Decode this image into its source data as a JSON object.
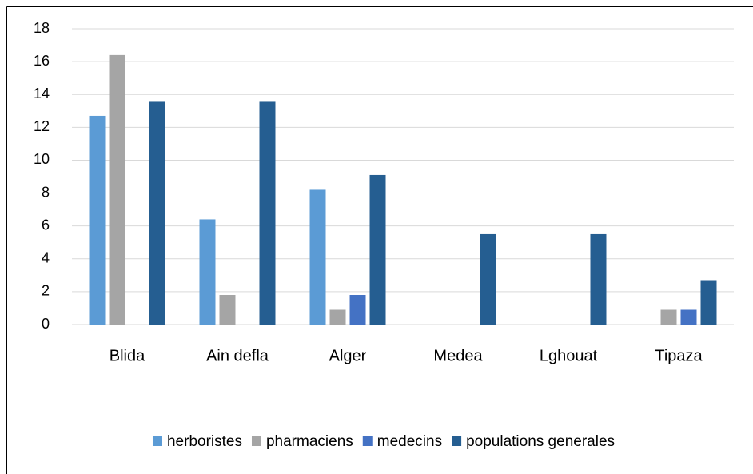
{
  "chart_data": {
    "type": "bar",
    "categories": [
      "Blida",
      "Ain defla",
      "Alger",
      "Medea",
      "Lghouat",
      "Tipaza"
    ],
    "series": [
      {
        "name": "herboristes",
        "color": "#5b9bd5",
        "values": [
          12.7,
          6.4,
          8.2,
          0,
          0,
          0
        ]
      },
      {
        "name": "pharmaciens",
        "color": "#a5a5a5",
        "values": [
          16.4,
          1.8,
          0.9,
          0,
          0,
          0.9
        ]
      },
      {
        "name": "medecins",
        "color": "#4472c4",
        "values": [
          0,
          0,
          1.8,
          0,
          0,
          0.9
        ]
      },
      {
        "name": "populations generales",
        "color": "#255e91",
        "values": [
          13.6,
          13.6,
          9.1,
          5.5,
          5.5,
          2.7
        ]
      }
    ],
    "ylim": [
      0,
      18
    ],
    "yticks": [
      0,
      2,
      4,
      6,
      8,
      10,
      12,
      14,
      16,
      18
    ],
    "grid": true,
    "legend": "bottom"
  }
}
